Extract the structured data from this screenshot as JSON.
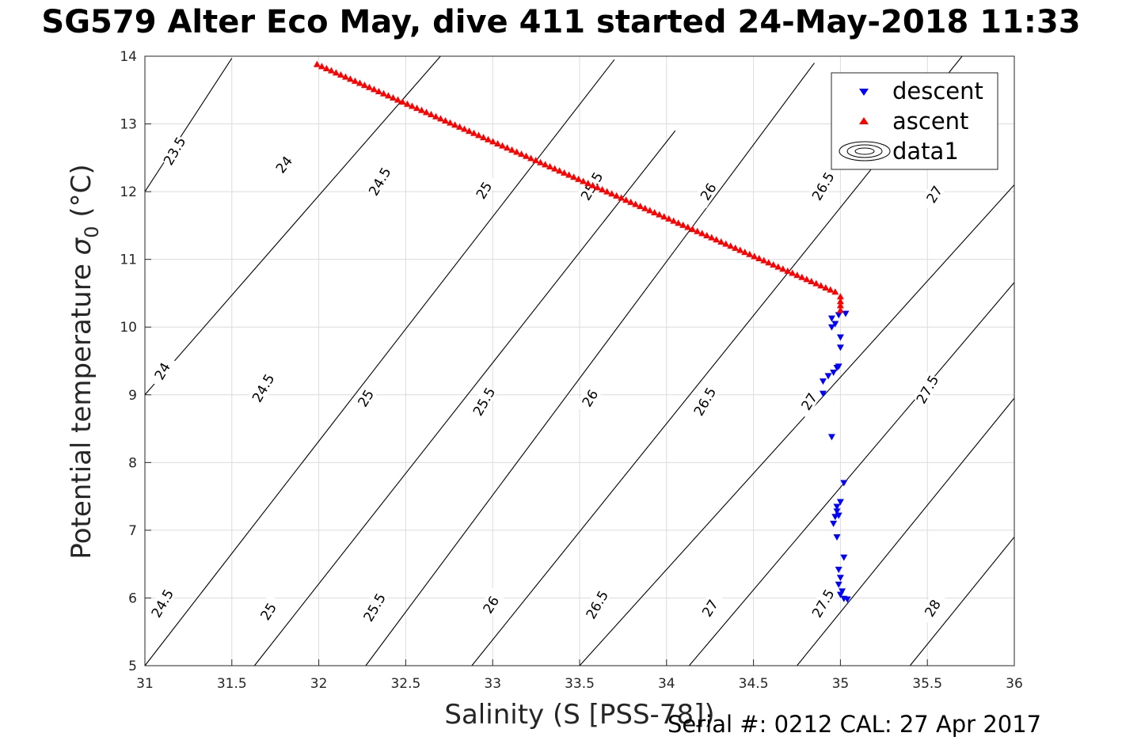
{
  "title": "SG579 Alter Eco May, dive 411 started 24-May-2018 11:33",
  "serial_text": "Serial #: 0212  CAL: 27 Apr 2017",
  "colors": {
    "descent": "#0000ff",
    "ascent": "#ff0000",
    "contour": "#000000",
    "grid": "#dcdcdc"
  },
  "chart_data": {
    "type": "scatter",
    "xlabel": "Salinity (S [PSS-78])",
    "ylabel": "Potential temperature σ₀ (°C)",
    "ylabel_main": "Potential temperature",
    "ylabel_sym": "σ",
    "ylabel_sub": "0",
    "ylabel_unit": " (°C)",
    "xlim": [
      31,
      36
    ],
    "ylim": [
      5,
      14
    ],
    "xticks": [
      31,
      31.5,
      32,
      32.5,
      33,
      33.5,
      34,
      34.5,
      35,
      35.5,
      36
    ],
    "yticks": [
      5,
      6,
      7,
      8,
      9,
      10,
      11,
      12,
      13,
      14
    ],
    "grid": true,
    "legend_position": "top-right",
    "legend": [
      "descent",
      "ascent",
      "data1"
    ],
    "series": [
      {
        "name": "descent",
        "marker": "triangle-down",
        "points": [
          [
            35.02,
            5.99
          ],
          [
            35.04,
            5.98
          ],
          [
            35.0,
            6.05
          ],
          [
            35.01,
            6.1
          ],
          [
            34.99,
            6.2
          ],
          [
            35.0,
            6.3
          ],
          [
            34.99,
            6.42
          ],
          [
            35.02,
            6.6
          ],
          [
            34.98,
            6.9
          ],
          [
            34.96,
            7.1
          ],
          [
            34.97,
            7.2
          ],
          [
            34.99,
            7.22
          ],
          [
            34.98,
            7.28
          ],
          [
            34.98,
            7.35
          ],
          [
            35.0,
            7.42
          ],
          [
            35.02,
            7.7
          ],
          [
            34.95,
            8.38
          ],
          [
            34.9,
            9.02
          ],
          [
            34.9,
            9.2
          ],
          [
            34.93,
            9.28
          ],
          [
            34.96,
            9.33
          ],
          [
            34.98,
            9.4
          ],
          [
            34.99,
            9.42
          ],
          [
            35.0,
            9.7
          ],
          [
            35.0,
            9.85
          ],
          [
            34.95,
            10.0
          ],
          [
            34.97,
            10.05
          ],
          [
            34.95,
            10.13
          ],
          [
            34.99,
            10.18
          ],
          [
            35.03,
            10.2
          ]
        ]
      },
      {
        "name": "ascent",
        "marker": "triangle-up",
        "start": [
          31.99,
          13.88
        ],
        "end": [
          34.97,
          10.52
        ],
        "count": 110,
        "extra": [
          [
            35.0,
            10.25
          ],
          [
            35.0,
            10.32
          ],
          [
            35.0,
            10.38
          ],
          [
            35.0,
            10.45
          ]
        ]
      }
    ],
    "contour_lines": [
      {
        "line": [
          [
            31.0,
            12.0
          ],
          [
            31.5,
            13.97
          ]
        ],
        "label": "23.5"
      },
      {
        "line": [
          [
            31.0,
            9.0
          ],
          [
            32.7,
            14.0
          ]
        ],
        "label": "24"
      },
      {
        "line": [
          [
            31.0,
            5.0
          ],
          [
            33.7,
            13.95
          ]
        ],
        "label": "24.5"
      },
      {
        "line": [
          [
            31.63,
            5.0
          ],
          [
            34.05,
            12.9
          ]
        ],
        "label": "25"
      },
      {
        "line": [
          [
            32.27,
            5.0
          ],
          [
            34.85,
            13.9
          ]
        ],
        "label": "25.5"
      },
      {
        "line": [
          [
            32.88,
            5.0
          ],
          [
            35.7,
            14.0
          ]
        ],
        "label": "26"
      },
      {
        "line": [
          [
            33.5,
            5.0
          ],
          [
            36.0,
            12.1
          ]
        ],
        "label": "26.5"
      },
      {
        "line": [
          [
            34.13,
            5.0
          ],
          [
            36.0,
            10.66
          ]
        ],
        "label": "27"
      },
      {
        "line": [
          [
            34.75,
            5.0
          ],
          [
            36.0,
            8.95
          ]
        ],
        "label": "27.5"
      },
      {
        "line": [
          [
            35.4,
            5.0
          ],
          [
            36.0,
            6.9
          ]
        ],
        "label": "28"
      }
    ],
    "contour_labels": [
      {
        "text": "23.5",
        "pos": [
          31.17,
          12.6
        ],
        "angle": -60
      },
      {
        "text": "24",
        "pos": [
          31.8,
          12.4
        ],
        "angle": -52
      },
      {
        "text": "24",
        "pos": [
          31.1,
          9.35
        ],
        "angle": -60
      },
      {
        "text": "24.5",
        "pos": [
          32.35,
          12.15
        ],
        "angle": -60
      },
      {
        "text": "24.5",
        "pos": [
          31.68,
          9.1
        ],
        "angle": -60
      },
      {
        "text": "24.5",
        "pos": [
          31.1,
          5.92
        ],
        "angle": -60
      },
      {
        "text": "25",
        "pos": [
          32.95,
          12.02
        ],
        "angle": -58
      },
      {
        "text": "25",
        "pos": [
          32.27,
          8.95
        ],
        "angle": -58
      },
      {
        "text": "25",
        "pos": [
          31.71,
          5.8
        ],
        "angle": -58
      },
      {
        "text": "25.5",
        "pos": [
          33.57,
          12.08
        ],
        "angle": -60
      },
      {
        "text": "25.5",
        "pos": [
          32.95,
          8.9
        ],
        "angle": -60
      },
      {
        "text": "25.5",
        "pos": [
          32.32,
          5.86
        ],
        "angle": -60
      },
      {
        "text": "26",
        "pos": [
          34.24,
          12.0
        ],
        "angle": -58
      },
      {
        "text": "26",
        "pos": [
          33.56,
          8.95
        ],
        "angle": -58
      },
      {
        "text": "26",
        "pos": [
          32.99,
          5.9
        ],
        "angle": -58
      },
      {
        "text": "26.5",
        "pos": [
          34.9,
          12.08
        ],
        "angle": -60
      },
      {
        "text": "26.5",
        "pos": [
          34.22,
          8.9
        ],
        "angle": -60
      },
      {
        "text": "26.5",
        "pos": [
          33.6,
          5.9
        ],
        "angle": -60
      },
      {
        "text": "27",
        "pos": [
          35.54,
          11.96
        ],
        "angle": -58
      },
      {
        "text": "27",
        "pos": [
          34.82,
          8.9
        ],
        "angle": -58
      },
      {
        "text": "27",
        "pos": [
          34.25,
          5.85
        ],
        "angle": -58
      },
      {
        "text": "27.5",
        "pos": [
          35.5,
          9.08
        ],
        "angle": -60
      },
      {
        "text": "27.5",
        "pos": [
          34.9,
          5.92
        ],
        "angle": -60
      },
      {
        "text": "28",
        "pos": [
          35.53,
          5.85
        ],
        "angle": -58
      }
    ]
  }
}
